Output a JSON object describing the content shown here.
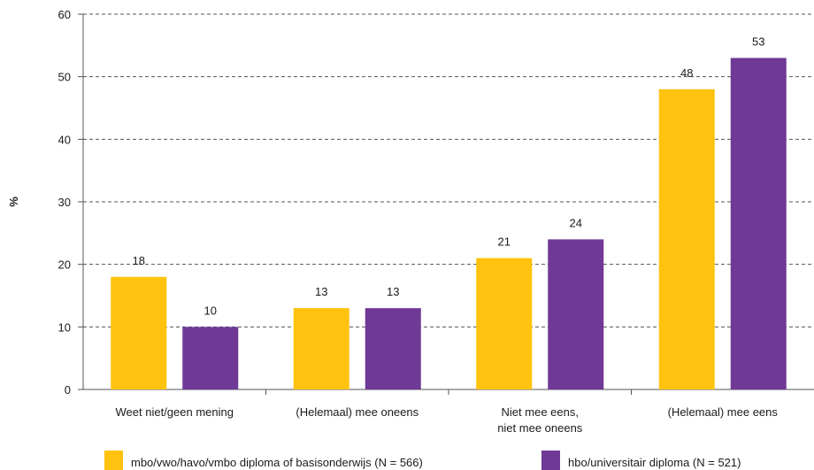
{
  "chart_data": {
    "type": "bar",
    "categories": [
      "Weet niet/geen mening",
      "(Helemaal) mee oneens",
      "Niet mee eens,\nniet mee oneens",
      "(Helemaal) mee eens"
    ],
    "series": [
      {
        "name": "mbo/vwo/havo/vmbo diploma of basisonderwijs (N = 566)",
        "values": [
          18,
          13,
          21,
          48
        ]
      },
      {
        "name": "hbo/universitair diploma (N = 521)",
        "values": [
          10,
          13,
          24,
          53
        ]
      }
    ],
    "ylabel": "%",
    "ylim": [
      0,
      60
    ],
    "yticks": [
      0,
      10,
      20,
      30,
      40,
      50,
      60
    ],
    "grid": true,
    "legend_position": "bottom",
    "colors": {
      "series_1": "#ffc20e",
      "series_2": "#6f3996",
      "grid": "#555555",
      "axis": "#555555"
    }
  }
}
